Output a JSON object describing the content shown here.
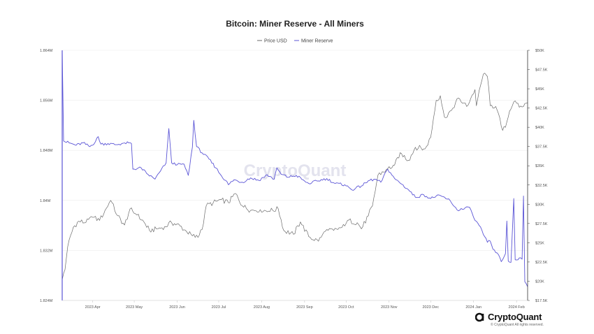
{
  "chart_data": {
    "type": "line",
    "title": "Bitcoin: Miner Reserve - All Miners",
    "legend": {
      "placement": "top-center",
      "entries": [
        "Price USD",
        "Miner Reserve"
      ]
    },
    "grid": {
      "horizontal": true,
      "vertical": false
    },
    "x_ticks": [
      "2023 Apr",
      "2023 May",
      "2023 Jun",
      "2023 Jul",
      "2023 Aug",
      "2023 Sep",
      "2023 Oct",
      "2023 Nov",
      "2023 Dec",
      "2024 Jan",
      "2024 Feb"
    ],
    "x_range": [
      "2023-03-10",
      "2024-02-09"
    ],
    "y_left": {
      "ticks": [
        "1.864M",
        "1.856M",
        "1.848M",
        "1.84M",
        "1.832M",
        "1.824M"
      ],
      "range": [
        1824000,
        1864000
      ]
    },
    "y_right": {
      "ticks": [
        "$50K",
        "$47.5K",
        "$45K",
        "$42.5K",
        "$40K",
        "$37.5K",
        "$35K",
        "$32.5K",
        "$30K",
        "$27.5K",
        "$25K",
        "$22.5K",
        "$20K",
        "$17.5K"
      ],
      "range": [
        17500,
        50000
      ]
    },
    "series": [
      {
        "name": "Miner Reserve",
        "axis": "left",
        "color": "#5b55d6",
        "points": [
          [
            "2023-03-10",
            1864000
          ],
          [
            "2023-03-11",
            1849500
          ],
          [
            "2023-03-15",
            1849200
          ],
          [
            "2023-03-20",
            1848800
          ],
          [
            "2023-03-25",
            1849200
          ],
          [
            "2023-03-30",
            1848600
          ],
          [
            "2023-04-03",
            1849400
          ],
          [
            "2023-04-05",
            1850200
          ],
          [
            "2023-04-07",
            1849000
          ],
          [
            "2023-04-12",
            1849100
          ],
          [
            "2023-04-18",
            1848900
          ],
          [
            "2023-04-24",
            1849200
          ],
          [
            "2023-04-29",
            1849100
          ],
          [
            "2023-04-30",
            1845000
          ],
          [
            "2023-05-06",
            1845200
          ],
          [
            "2023-05-10",
            1844300
          ],
          [
            "2023-05-16",
            1843400
          ],
          [
            "2023-05-20",
            1844700
          ],
          [
            "2023-05-24",
            1846000
          ],
          [
            "2023-05-26",
            1851500
          ],
          [
            "2023-05-28",
            1846000
          ],
          [
            "2023-06-01",
            1845700
          ],
          [
            "2023-06-06",
            1845800
          ],
          [
            "2023-06-09",
            1844000
          ],
          [
            "2023-06-12",
            1848500
          ],
          [
            "2023-06-13",
            1852800
          ],
          [
            "2023-06-15",
            1848600
          ],
          [
            "2023-06-19",
            1847600
          ],
          [
            "2023-06-24",
            1846600
          ],
          [
            "2023-06-29",
            1845200
          ],
          [
            "2023-07-02",
            1844200
          ],
          [
            "2023-07-06",
            1843200
          ],
          [
            "2023-07-08",
            1842500
          ],
          [
            "2023-07-12",
            1843300
          ],
          [
            "2023-07-18",
            1842900
          ],
          [
            "2023-07-24",
            1843600
          ],
          [
            "2023-07-30",
            1843200
          ],
          [
            "2023-08-05",
            1844100
          ],
          [
            "2023-08-10",
            1843400
          ],
          [
            "2023-08-12",
            1845200
          ],
          [
            "2023-08-15",
            1844200
          ],
          [
            "2023-08-20",
            1843700
          ],
          [
            "2023-08-26",
            1844000
          ],
          [
            "2023-09-01",
            1843100
          ],
          [
            "2023-09-04",
            1842700
          ],
          [
            "2023-09-10",
            1843100
          ],
          [
            "2023-09-17",
            1843500
          ],
          [
            "2023-09-23",
            1842700
          ],
          [
            "2023-09-30",
            1842500
          ],
          [
            "2023-10-05",
            1841700
          ],
          [
            "2023-10-12",
            1842300
          ],
          [
            "2023-10-18",
            1843200
          ],
          [
            "2023-10-22",
            1843400
          ],
          [
            "2023-10-26",
            1842900
          ],
          [
            "2023-10-31",
            1845000
          ],
          [
            "2023-11-05",
            1843500
          ],
          [
            "2023-11-10",
            1842600
          ],
          [
            "2023-11-15",
            1841700
          ],
          [
            "2023-11-20",
            1840500
          ],
          [
            "2023-11-26",
            1840900
          ],
          [
            "2023-12-01",
            1840300
          ],
          [
            "2023-12-05",
            1840700
          ],
          [
            "2023-12-10",
            1840600
          ],
          [
            "2023-12-13",
            1840200
          ],
          [
            "2023-12-15",
            1840000
          ],
          [
            "2023-12-20",
            1838500
          ],
          [
            "2023-12-25",
            1838600
          ],
          [
            "2023-12-29",
            1838900
          ],
          [
            "2024-01-02",
            1836800
          ],
          [
            "2024-01-05",
            1836000
          ],
          [
            "2024-01-09",
            1834200
          ],
          [
            "2024-01-11",
            1833300
          ],
          [
            "2024-01-13",
            1833500
          ],
          [
            "2024-01-15",
            1832200
          ],
          [
            "2024-01-18",
            1831600
          ],
          [
            "2024-01-21",
            1830200
          ],
          [
            "2024-01-23",
            1831000
          ],
          [
            "2024-01-24",
            1831500
          ],
          [
            "2024-01-25",
            1836700
          ],
          [
            "2024-01-26",
            1830300
          ],
          [
            "2024-01-28",
            1830100
          ],
          [
            "2024-01-30",
            1840300
          ],
          [
            "2024-01-31",
            1830500
          ],
          [
            "2024-02-03",
            1830800
          ],
          [
            "2024-02-05",
            1830600
          ],
          [
            "2024-02-06",
            1840700
          ],
          [
            "2024-02-07",
            1827000
          ],
          [
            "2024-02-09",
            1826200
          ]
        ]
      },
      {
        "name": "Price USD",
        "axis": "right",
        "color": "#6b6b6b",
        "points": [
          [
            "2023-03-10",
            20200
          ],
          [
            "2023-03-12",
            21500
          ],
          [
            "2023-03-14",
            24500
          ],
          [
            "2023-03-18",
            27000
          ],
          [
            "2023-03-22",
            27800
          ],
          [
            "2023-03-27",
            27600
          ],
          [
            "2023-04-01",
            28300
          ],
          [
            "2023-04-06",
            27900
          ],
          [
            "2023-04-11",
            29500
          ],
          [
            "2023-04-14",
            30500
          ],
          [
            "2023-04-19",
            28500
          ],
          [
            "2023-04-24",
            27300
          ],
          [
            "2023-04-28",
            29400
          ],
          [
            "2023-05-03",
            28600
          ],
          [
            "2023-05-08",
            27700
          ],
          [
            "2023-05-12",
            26600
          ],
          [
            "2023-05-18",
            26800
          ],
          [
            "2023-05-23",
            27100
          ],
          [
            "2023-05-28",
            27600
          ],
          [
            "2023-06-03",
            27200
          ],
          [
            "2023-06-08",
            26400
          ],
          [
            "2023-06-12",
            25900
          ],
          [
            "2023-06-16",
            25700
          ],
          [
            "2023-06-20",
            27500
          ],
          [
            "2023-06-22",
            29800
          ],
          [
            "2023-06-27",
            30200
          ],
          [
            "2023-07-03",
            30600
          ],
          [
            "2023-07-08",
            30200
          ],
          [
            "2023-07-13",
            31400
          ],
          [
            "2023-07-18",
            29800
          ],
          [
            "2023-07-24",
            29200
          ],
          [
            "2023-07-31",
            29300
          ],
          [
            "2023-08-06",
            29100
          ],
          [
            "2023-08-13",
            29400
          ],
          [
            "2023-08-17",
            26600
          ],
          [
            "2023-08-24",
            26100
          ],
          [
            "2023-08-29",
            27700
          ],
          [
            "2023-09-04",
            25800
          ],
          [
            "2023-09-11",
            25200
          ],
          [
            "2023-09-16",
            26500
          ],
          [
            "2023-09-22",
            26600
          ],
          [
            "2023-09-28",
            27000
          ],
          [
            "2023-10-02",
            27900
          ],
          [
            "2023-10-09",
            27600
          ],
          [
            "2023-10-12",
            26800
          ],
          [
            "2023-10-17",
            28500
          ],
          [
            "2023-10-20",
            29800
          ],
          [
            "2023-10-24",
            33800
          ],
          [
            "2023-10-30",
            34500
          ],
          [
            "2023-11-05",
            35100
          ],
          [
            "2023-11-09",
            36700
          ],
          [
            "2023-11-15",
            35700
          ],
          [
            "2023-11-20",
            37400
          ],
          [
            "2023-11-27",
            37200
          ],
          [
            "2023-12-01",
            38700
          ],
          [
            "2023-12-05",
            43500
          ],
          [
            "2023-12-08",
            44100
          ],
          [
            "2023-12-11",
            41300
          ],
          [
            "2023-12-16",
            42200
          ],
          [
            "2023-12-21",
            43800
          ],
          [
            "2023-12-27",
            42700
          ],
          [
            "2024-01-02",
            44900
          ],
          [
            "2024-01-03",
            42800
          ],
          [
            "2024-01-08",
            46900
          ],
          [
            "2024-01-11",
            46600
          ],
          [
            "2024-01-13",
            42800
          ],
          [
            "2024-01-17",
            42700
          ],
          [
            "2024-01-22",
            39600
          ],
          [
            "2024-01-24",
            40000
          ],
          [
            "2024-01-27",
            42100
          ],
          [
            "2024-01-30",
            43300
          ],
          [
            "2024-02-03",
            42600
          ],
          [
            "2024-02-06",
            42700
          ],
          [
            "2024-02-09",
            43200
          ]
        ]
      }
    ]
  },
  "watermark": "CryptoQuant",
  "footer": {
    "brand": "CryptoQuant",
    "rights": "© CryptoQuant All rights reserved."
  }
}
